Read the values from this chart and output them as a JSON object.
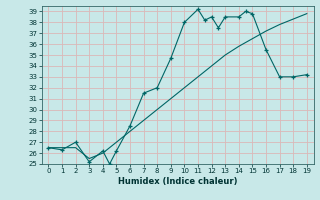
{
  "title": "",
  "xlabel": "Humidex (Indice chaleur)",
  "bg_color": "#c8e8e8",
  "grid_color": "#dbb8b8",
  "line_color": "#006666",
  "xlim": [
    -0.5,
    19.5
  ],
  "ylim": [
    25,
    39.5
  ],
  "yticks": [
    25,
    26,
    27,
    28,
    29,
    30,
    31,
    32,
    33,
    34,
    35,
    36,
    37,
    38,
    39
  ],
  "xticks": [
    0,
    1,
    2,
    3,
    4,
    5,
    6,
    7,
    8,
    9,
    10,
    11,
    12,
    13,
    14,
    15,
    16,
    17,
    18,
    19
  ],
  "curve1_x": [
    0,
    1,
    2,
    3,
    4,
    4.5,
    5,
    6,
    7,
    8,
    9,
    10,
    11,
    11.5,
    12,
    12.5,
    13,
    14,
    14.5,
    15,
    16,
    17,
    18,
    19
  ],
  "curve1_y": [
    26.5,
    26.3,
    27.0,
    25.2,
    26.2,
    25.0,
    26.2,
    28.5,
    31.5,
    32.0,
    34.7,
    38.0,
    39.2,
    38.2,
    38.5,
    37.5,
    38.5,
    38.5,
    39.0,
    38.8,
    35.5,
    33.0,
    33.0,
    33.2
  ],
  "curve2_x": [
    0,
    1,
    2,
    3,
    4,
    5,
    6,
    7,
    8,
    9,
    10,
    11,
    12,
    13,
    14,
    15,
    16,
    17,
    18,
    19
  ],
  "curve2_y": [
    26.5,
    26.5,
    26.5,
    25.5,
    26.0,
    27.0,
    28.0,
    29.0,
    30.0,
    31.0,
    32.0,
    33.0,
    34.0,
    35.0,
    35.8,
    36.5,
    37.2,
    37.8,
    38.3,
    38.8
  ],
  "marker1_x": [
    0,
    1,
    2,
    3,
    4,
    5,
    6,
    7,
    8,
    9,
    10,
    11,
    12,
    13,
    14,
    15,
    16,
    17,
    18,
    19
  ],
  "marker1_y": [
    26.5,
    26.3,
    27.0,
    25.2,
    25.0,
    26.2,
    28.5,
    31.5,
    32.0,
    34.7,
    38.0,
    39.2,
    38.5,
    38.5,
    38.5,
    38.8,
    35.5,
    33.0,
    33.0,
    33.2
  ]
}
